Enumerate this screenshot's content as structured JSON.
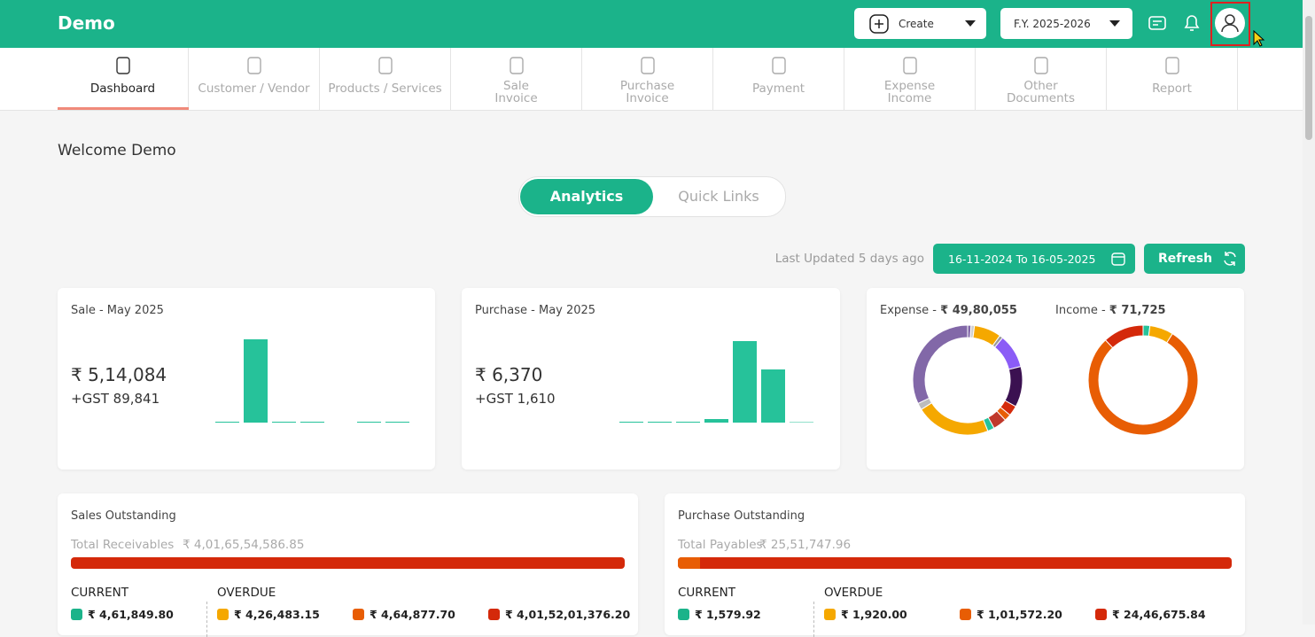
{
  "header": {
    "title": "Demo",
    "create": "Create",
    "fy": "F.Y. 2025-2026"
  },
  "nav": {
    "tabs": [
      {
        "lines": [
          "Dashboard"
        ]
      },
      {
        "lines": [
          "Customer / Vendor"
        ]
      },
      {
        "lines": [
          "Products / Services"
        ]
      },
      {
        "lines": [
          "Sale",
          "Invoice"
        ]
      },
      {
        "lines": [
          "Purchase",
          "Invoice"
        ]
      },
      {
        "lines": [
          "Payment"
        ]
      },
      {
        "lines": [
          "Expense",
          "Income"
        ]
      },
      {
        "lines": [
          "Other",
          "Documents"
        ]
      },
      {
        "lines": [
          "Report"
        ]
      }
    ]
  },
  "welcome": "Welcome Demo",
  "toggle": [
    "Analytics",
    "Quick Links"
  ],
  "last_updated": "Last Updated 5 days ago",
  "date_range": "16-11-2024 To 16-05-2025",
  "refresh": "Refresh",
  "sale": {
    "title": "Sale - May 2025",
    "amount": "₹ 5,14,084",
    "gst": "+GST 89,841",
    "color": "#26c29a",
    "bars": [
      1,
      94,
      1,
      1,
      0,
      1,
      1
    ]
  },
  "purchase": {
    "title": "Purchase - May 2025",
    "amount": "₹ 6,370",
    "gst": "+GST 1,610",
    "color": "#26c29a",
    "bars": [
      1,
      1,
      1,
      4,
      92,
      60,
      0.5
    ]
  },
  "expense": {
    "label": "Expense - ",
    "amount": "₹ 49,80,055",
    "segments": [
      {
        "value": 1,
        "color": "#8268a8"
      },
      {
        "value": 1,
        "color": "#cfcfcf"
      },
      {
        "value": 8,
        "color": "#f5a800"
      },
      {
        "value": 1,
        "color": "#9a9a9a"
      },
      {
        "value": 10,
        "color": "#8b5cf6"
      },
      {
        "value": 12,
        "color": "#3b1151"
      },
      {
        "value": 3,
        "color": "#d4290a"
      },
      {
        "value": 2,
        "color": "#e85d04"
      },
      {
        "value": 4,
        "color": "#c0392b"
      },
      {
        "value": 2,
        "color": "#26c29a"
      },
      {
        "value": 22,
        "color": "#f5a800"
      },
      {
        "value": 2,
        "color": "#bcbcbc"
      },
      {
        "value": 32,
        "color": "#8268a8"
      }
    ]
  },
  "income": {
    "label": "Income - ",
    "amount": "₹ 71,725",
    "segments": [
      {
        "value": 2,
        "color": "#26c29a"
      },
      {
        "value": 7,
        "color": "#f5a800"
      },
      {
        "value": 79,
        "color": "#e85d04"
      },
      {
        "value": 12,
        "color": "#d4290a"
      }
    ]
  },
  "sales_outstanding": {
    "title": "Sales Outstanding",
    "total_label": "Total Receivables",
    "total": "₹ 4,01,65,54,586.85",
    "current_label": "CURRENT",
    "overdue_label": "OVERDUE",
    "buckets": [
      "₹ 4,61,849.80",
      "₹ 4,26,483.15",
      "₹ 4,64,877.70",
      "₹ 4,01,52,01,376.20"
    ]
  },
  "purchase_outstanding": {
    "title": "Purchase Outstanding",
    "total_label": "Total Payables",
    "total": "₹ 25,51,747.96",
    "current_label": "CURRENT",
    "overdue_label": "OVERDUE",
    "buckets": [
      "₹ 1,579.92",
      "₹ 1,920.00",
      "₹ 1,01,572.20",
      "₹ 24,46,675.84"
    ]
  }
}
